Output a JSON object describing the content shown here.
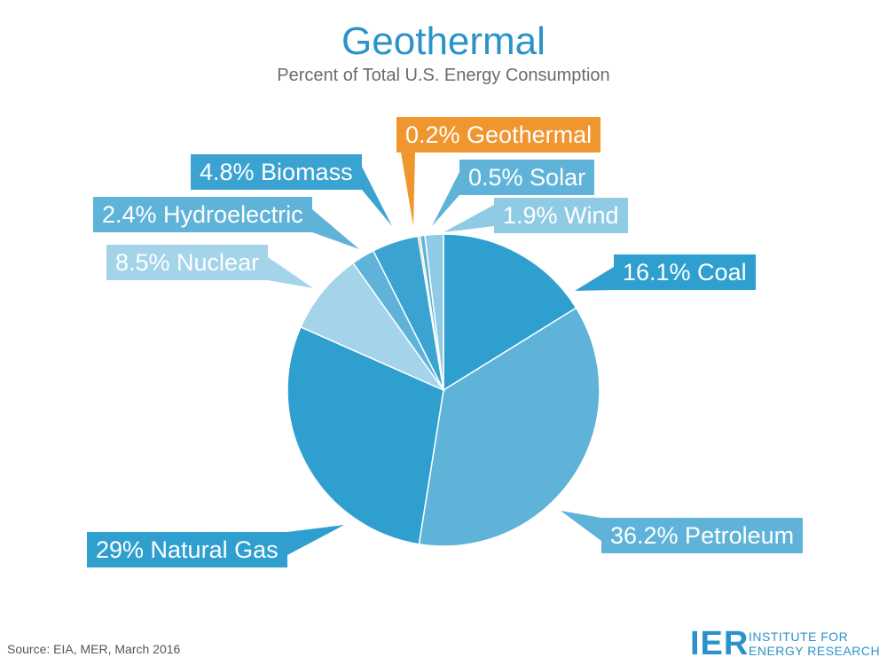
{
  "title": "Geothermal",
  "subtitle": "Percent of Total U.S. Energy Consumption",
  "source": "Source: EIA, MER, March 2016",
  "logo": {
    "mark": "IER",
    "line1": "INSTITUTE FOR",
    "line2": "ENERGY RESEARCH"
  },
  "chart_data": {
    "type": "pie",
    "title": "Geothermal",
    "subtitle": "Percent of Total U.S. Energy Consumption",
    "unit": "%",
    "slices": [
      {
        "name": "Coal",
        "value": 16.1,
        "label": "16.1% Coal",
        "color": "#2f9fcf"
      },
      {
        "name": "Petroleum",
        "value": 36.2,
        "label": "36.2% Petroleum",
        "color": "#5fb3d9"
      },
      {
        "name": "Natural Gas",
        "value": 29,
        "label": "29% Natural Gas",
        "color": "#2f9fcf"
      },
      {
        "name": "Nuclear",
        "value": 8.5,
        "label": "8.5% Nuclear",
        "color": "#a3d4ea"
      },
      {
        "name": "Hydroelectric",
        "value": 2.4,
        "label": "2.4% Hydroelectric",
        "color": "#5fb3d9"
      },
      {
        "name": "Biomass",
        "value": 4.8,
        "label": "4.8% Biomass",
        "color": "#3aa3d1"
      },
      {
        "name": "Geothermal",
        "value": 0.2,
        "label": "0.2% Geothermal",
        "color": "#f0962e"
      },
      {
        "name": "Solar",
        "value": 0.5,
        "label": "0.5% Solar",
        "color": "#5fb3d9"
      },
      {
        "name": "Wind",
        "value": 1.9,
        "label": "1.9% Wind",
        "color": "#8fcbe5"
      }
    ]
  }
}
